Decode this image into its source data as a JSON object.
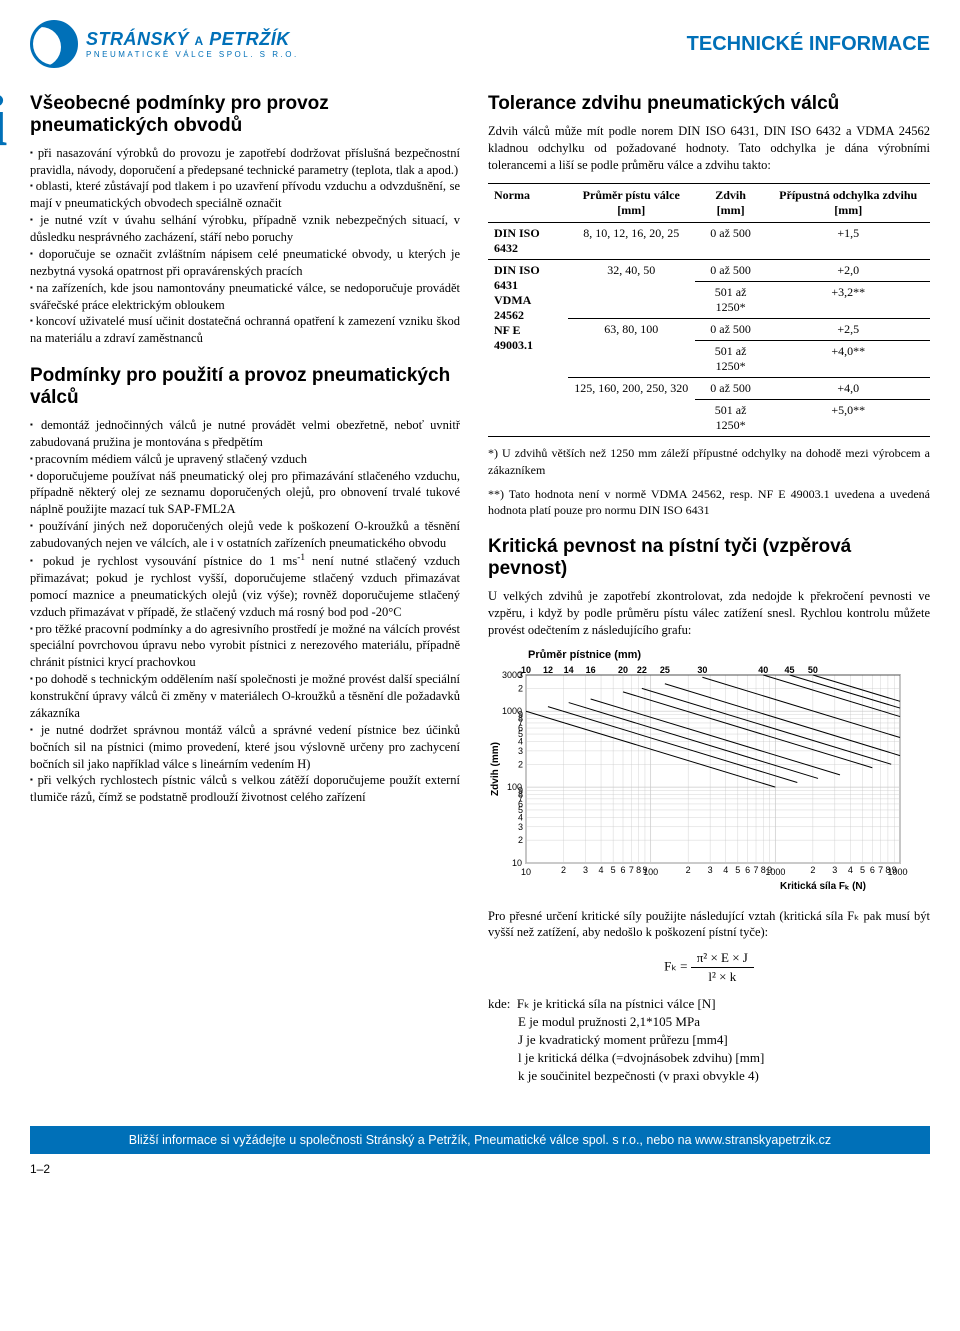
{
  "brand": {
    "name_primary": "STRÁNSKÝ",
    "amp": "A",
    "name_secondary": "PETRŽÍK",
    "tagline": "PNEUMATICKÉ VÁLCE SPOL. S R.O.",
    "accent_color": "#0070b8"
  },
  "page_title": "TECHNICKÉ INFORMACE",
  "info_glyph": "i",
  "left": {
    "h1": "Všeobecné podmínky pro provoz pneumatických obvodů",
    "bullets1": [
      "při nasazování výrobků do provozu je zapotřebí dodržovat příslušná bezpečnostní pravidla, návody, doporučení a předepsané technické parametry (teplota, tlak a apod.)",
      "oblasti, které zůstávají pod tlakem i po uzavření přívodu vzduchu a odvzdušnění, se mají v pneumatických obvodech speciálně označit",
      "je nutné vzít v úvahu selhání výrobku, případně vznik nebezpečných situací, v důsledku nesprávného zacházení, stáří nebo poruchy",
      "doporučuje se označit zvláštním nápisem celé pneumatické obvody, u kterých je nezbytná vysoká opatrnost při opravárenských pracích",
      "na zařízeních, kde jsou namontovány pneumatické válce, se nedoporučuje provádět svářečské práce elektrickým obloukem",
      "koncoví uživatelé musí učinit dostatečná ochranná opatření k zamezení vzniku škod na materiálu a zdraví zaměstnanců"
    ],
    "h2": "Podmínky pro použití a provoz pneumatických válců",
    "bullets2": [
      "demontáž jednočinných válců je nutné provádět velmi obezřetně, neboť uvnitř zabudovaná pružina je montována s předpětím",
      "pracovním médiem válců je upravený stlačený vzduch",
      "doporučujeme používat náš pneumatický olej pro přimazávání stlačeného vzduchu, případně některý olej ze seznamu doporučených olejů, pro obnovení trvalé tukové náplně použijte mazací tuk SAP-FML2A",
      "používání jiných než doporučených olejů vede k poškození O-kroužků a těsnění zabudovaných nejen ve válcích, ale i v ostatních zařízeních pneumatického obvodu",
      "pokud je rychlost vysouvání pístnice do 1 ms⁻¹ není nutné stlačený vzduch přimazávat; pokud je rychlost vyšší, doporučujeme stlačený vzduch přimazávat pomocí maznice a pneumatických olejů (viz výše); rovněž doporučujeme stlačený vzduch přimazávat v případě, že stlačený vzduch má rosný bod pod -20°C",
      "pro těžké pracovní podmínky a do agresivního prostředí je možné na válcích provést speciální povrchovou úpravu nebo vyrobit pístnici z nerezového materiálu, případně chránit pístnici krycí prachovkou",
      "po dohodě s technickým oddělením naší společnosti je možné provést další speciální konstrukční úpravy válců či změny v materiálech O-kroužků a těsnění dle požadavků zákazníka",
      "je nutné dodržet správnou montáž válců a správné vedení pístnice bez účinků bočních sil na pístnici (mimo provedení, které jsou výslovně určeny pro zachycení bočních sil jako například válce s lineárním vedením H)",
      "při velkých rychlostech pístnic válců s velkou zátěží doporučujeme použít externí tlumiče rázů, čímž se podstatně prodlouží životnost celého zařízení"
    ]
  },
  "right": {
    "tol_title": "Tolerance zdvihu pneumatických válců",
    "tol_intro": "Zdvih válců může mít podle norem DIN ISO 6431, DIN ISO 6432 a VDMA 24562 kladnou odchylku od požadované hodnoty. Tato odchylka je dána výrobními tolerancemi a liší se podle průměru válce a zdvihu takto:",
    "table": {
      "headers": [
        "Norma",
        "Průměr pístu válce [mm]",
        "Zdvih [mm]",
        "Přípustná odchylka zdvihu [mm]"
      ],
      "rows": [
        {
          "norma": "DIN ISO 6432",
          "pist": "8, 10, 12, 16, 20, 25",
          "zdvih": "0 až 500",
          "tol": "+1,5",
          "rs": 1
        },
        {
          "norma": "DIN ISO 6431\nVDMA 24562\nNF E 49003.1",
          "norma_rs": 6,
          "pist": "32, 40, 50",
          "pist_rs": 2,
          "zdvih": "0 až 500",
          "tol": "+2,0"
        },
        {
          "zdvih": "501 až 1250*",
          "tol": "+3,2**"
        },
        {
          "pist": "63, 80, 100",
          "pist_rs": 2,
          "zdvih": "0 až 500",
          "tol": "+2,5"
        },
        {
          "zdvih": "501 až 1250*",
          "tol": "+4,0**"
        },
        {
          "pist": "125, 160, 200, 250, 320",
          "pist_rs": 2,
          "zdvih": "0 až 500",
          "tol": "+4,0"
        },
        {
          "zdvih": "501 až 1250*",
          "tol": "+5,0**"
        }
      ]
    },
    "footnote1": "*) U zdvihů větších než 1250 mm záleží přípustné odchylky na dohodě mezi výrobcem a zákazníkem",
    "footnote2": "**) Tato hodnota není v normě VDMA 24562, resp. NF E 49003.1 uvedena a uvedená hodnota platí pouze pro normu DIN ISO 6431",
    "crit_title": "Kritická pevnost na pístní tyči (vzpěrová pevnost)",
    "crit_intro": "U velkých zdvihů je zapotřebí zkontrolovat, zda nedojde k překročení pevnosti ve vzpěru, i když by podle průměru pístu válec zatížení snesl. Rychlou kontrolu můžete provést odečtením z následujícího grafu:",
    "chart": {
      "type": "loglog-line",
      "title": "Průměr pístnice (mm)",
      "x_label": "Kritická síla Fₖ (N)",
      "y_label": "Zdvih (mm)",
      "x_domain": [
        10,
        10000
      ],
      "y_domain": [
        10,
        3000
      ],
      "bg_color": "#ffffff",
      "grid_color": "#c9c9c9",
      "line_color": "#000000",
      "line_width": 1,
      "x_ticks_major": [
        10,
        100,
        1000,
        10000
      ],
      "x_ticks_minor": [
        2,
        3,
        4,
        5,
        6,
        7,
        8,
        9
      ],
      "y_ticks_major": [
        10,
        100,
        1000,
        3000
      ],
      "series_labels": [
        "10",
        "12",
        "14",
        "16",
        "20",
        "22",
        "25",
        "30",
        "40",
        "45",
        "50"
      ],
      "label_y_at": 3000,
      "series": {
        "10": [
          [
            10,
            1000
          ],
          [
            1000,
            100
          ]
        ],
        "12": [
          [
            15,
            1150
          ],
          [
            1500,
            115
          ]
        ],
        "14": [
          [
            22,
            1300
          ],
          [
            2200,
            130
          ]
        ],
        "16": [
          [
            33,
            1450
          ],
          [
            3300,
            145
          ]
        ],
        "20": [
          [
            60,
            1800
          ],
          [
            6000,
            180
          ]
        ],
        "22": [
          [
            85,
            2000
          ],
          [
            8500,
            200
          ]
        ],
        "25": [
          [
            130,
            2300
          ],
          [
            10000,
            260
          ]
        ],
        "30": [
          [
            260,
            2800
          ],
          [
            10000,
            450
          ]
        ],
        "40": [
          [
            800,
            3000
          ],
          [
            10000,
            850
          ]
        ],
        "45": [
          [
            1300,
            3000
          ],
          [
            10000,
            1100
          ]
        ],
        "50": [
          [
            2000,
            3000
          ],
          [
            10000,
            1350
          ]
        ]
      }
    },
    "formula_intro": "Pro přesné určení kritické síly použijte následující vztah (kritická síla Fₖ pak musí být vyšší než zatížení, aby nedošlo k poškození pístní tyče):",
    "formula_lhs": "Fₖ =",
    "formula_num": "π² × E × J",
    "formula_den": "l² × k",
    "kde_label": "kde:",
    "kde_lines": [
      "Fₖ je kritická síla na pístnici válce [N]",
      "E je modul pružnosti 2,1*105 MPa",
      "J je kvadratický moment průřezu [mm4]",
      "l je kritická délka (=dvojnásobek zdvihu) [mm]",
      "k je součinitel bezpečnosti (v praxi obvykle 4)"
    ]
  },
  "footer": "Bližší informace si vyžádejte u společnosti Stránský a Petržík, Pneumatické válce spol. s r.o., nebo na www.stranskyapetrzik.cz",
  "page_number": "1–2"
}
